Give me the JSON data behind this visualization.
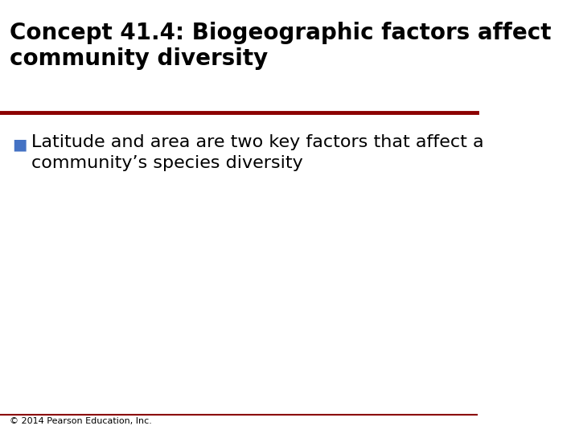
{
  "title_line1": "Concept 41.4: Biogeographic factors affect",
  "title_line2": "community diversity",
  "title_fontsize": 20,
  "title_color": "#000000",
  "title_bold": true,
  "separator_color": "#8B0000",
  "separator_linewidth": 3.5,
  "bullet_color": "#4472C4",
  "bullet_char": "■",
  "bullet_fontsize": 14,
  "bullet_text_line1": "Latitude and area are two key factors that affect a",
  "bullet_text_line2": "community’s species diversity",
  "bullet_text_fontsize": 16,
  "bullet_text_color": "#000000",
  "footer_text": "© 2014 Pearson Education, Inc.",
  "footer_fontsize": 8,
  "footer_color": "#000000",
  "footer_line_color": "#8B0000",
  "footer_line_linewidth": 1.5,
  "background_color": "#ffffff"
}
